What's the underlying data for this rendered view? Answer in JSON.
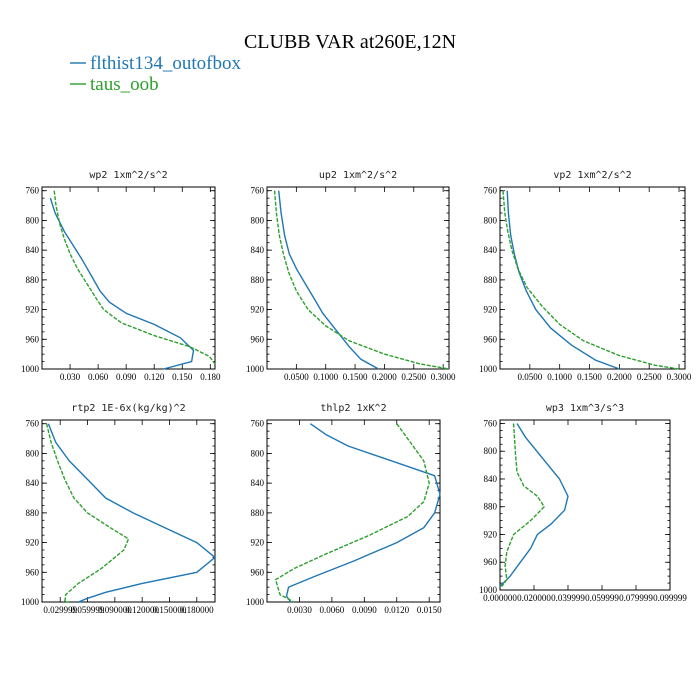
{
  "figure": {
    "title": "CLUBB VAR at260E,12N",
    "legend": [
      {
        "name": "flthist134_outofbox",
        "color": "#1f77b4",
        "dash": "solid"
      },
      {
        "name": "taus_oob",
        "color": "#2ca02c",
        "dash": "dashed"
      }
    ]
  },
  "chart_data": [
    {
      "type": "line",
      "title": "wp2   1xm^2/s^2",
      "xlim": [
        0.0,
        0.185
      ],
      "ylim": [
        1000,
        755
      ],
      "x_ticks": [
        0.03,
        0.06,
        0.09,
        0.12,
        0.15,
        0.18
      ],
      "x_tick_labels": [
        "0.030",
        "0.060",
        "0.090",
        "0.120",
        "0.150",
        "0.180"
      ],
      "y_ticks": [
        760,
        800,
        840,
        880,
        920,
        960,
        1000
      ],
      "y_tick_labels": [
        "760",
        "800",
        "840",
        "880",
        "920",
        "960",
        "1000"
      ],
      "series": [
        {
          "name": "flthist134_outofbox",
          "x": [
            0.009,
            0.014,
            0.024,
            0.034,
            0.044,
            0.053,
            0.062,
            0.072,
            0.09,
            0.12,
            0.148,
            0.162,
            0.16,
            0.13
          ],
          "y": [
            770,
            790,
            815,
            835,
            855,
            875,
            895,
            910,
            925,
            940,
            958,
            975,
            990,
            1000
          ]
        },
        {
          "name": "taus_oob",
          "x": [
            0.013,
            0.015,
            0.019,
            0.024,
            0.03,
            0.038,
            0.048,
            0.058,
            0.066,
            0.085,
            0.12,
            0.158,
            0.179,
            0.185
          ],
          "y": [
            760,
            780,
            805,
            825,
            845,
            865,
            885,
            905,
            920,
            938,
            955,
            970,
            983,
            993
          ]
        }
      ]
    },
    {
      "type": "line",
      "title": "up2   1xm^2/s^2",
      "xlim": [
        0.0,
        0.31
      ],
      "ylim": [
        1000,
        755
      ],
      "x_ticks": [
        0.05,
        0.1,
        0.15,
        0.2,
        0.25,
        0.3
      ],
      "x_tick_labels": [
        "0.0500",
        "0.1000",
        "0.1500",
        "0.2000",
        "0.2500",
        "0.3000"
      ],
      "y_ticks": [
        760,
        800,
        840,
        880,
        920,
        960,
        1000
      ],
      "y_tick_labels": [
        "760",
        "800",
        "840",
        "880",
        "920",
        "960",
        "1000"
      ],
      "series": [
        {
          "name": "flthist134_outofbox",
          "x": [
            0.02,
            0.024,
            0.03,
            0.038,
            0.05,
            0.065,
            0.08,
            0.095,
            0.12,
            0.14,
            0.16,
            0.19
          ],
          "y": [
            760,
            790,
            820,
            845,
            865,
            885,
            905,
            925,
            950,
            970,
            987,
            1000
          ]
        },
        {
          "name": "taus_oob",
          "x": [
            0.013,
            0.016,
            0.021,
            0.028,
            0.037,
            0.05,
            0.07,
            0.1,
            0.14,
            0.2,
            0.26,
            0.31
          ],
          "y": [
            760,
            790,
            820,
            845,
            870,
            895,
            920,
            942,
            962,
            980,
            993,
            1000
          ]
        }
      ]
    },
    {
      "type": "line",
      "title": "vp2   1xm^2/s^2",
      "xlim": [
        0.0,
        0.31
      ],
      "ylim": [
        1000,
        755
      ],
      "x_ticks": [
        0.05,
        0.1,
        0.15,
        0.2,
        0.25,
        0.3
      ],
      "x_tick_labels": [
        "0.0500",
        "0.1000",
        "0.1500",
        "0.2000",
        "0.2500",
        "0.3000"
      ],
      "y_ticks": [
        760,
        800,
        840,
        880,
        920,
        960,
        1000
      ],
      "y_tick_labels": [
        "760",
        "800",
        "840",
        "880",
        "920",
        "960",
        "1000"
      ],
      "series": [
        {
          "name": "flthist134_outofbox",
          "x": [
            0.012,
            0.014,
            0.018,
            0.024,
            0.032,
            0.044,
            0.06,
            0.085,
            0.12,
            0.16,
            0.2
          ],
          "y": [
            760,
            790,
            820,
            845,
            870,
            895,
            920,
            945,
            968,
            988,
            1000
          ]
        },
        {
          "name": "taus_oob",
          "x": [
            0.005,
            0.008,
            0.013,
            0.02,
            0.03,
            0.045,
            0.07,
            0.1,
            0.14,
            0.2,
            0.26,
            0.3
          ],
          "y": [
            760,
            790,
            815,
            840,
            865,
            890,
            915,
            940,
            962,
            982,
            995,
            1000
          ]
        }
      ]
    },
    {
      "type": "line",
      "title": "rtp2   1E-6x(kg/kg)^2",
      "xlim": [
        0.01,
        0.2
      ],
      "ylim": [
        1000,
        755
      ],
      "x_ticks": [
        0.03,
        0.06,
        0.09,
        0.12,
        0.15,
        0.18
      ],
      "x_tick_labels": [
        "0.029999",
        "0.059999",
        "0.090000",
        "0.120000",
        "0.150000",
        "0.180000"
      ],
      "y_ticks": [
        760,
        800,
        840,
        880,
        920,
        960,
        1000
      ],
      "y_tick_labels": [
        "760",
        "800",
        "840",
        "880",
        "920",
        "960",
        "1000"
      ],
      "series": [
        {
          "name": "flthist134_outofbox",
          "x": [
            0.017,
            0.025,
            0.04,
            0.06,
            0.08,
            0.11,
            0.145,
            0.18,
            0.2,
            0.18,
            0.12,
            0.08,
            0.06,
            0.05,
            0.054
          ],
          "y": [
            760,
            785,
            810,
            835,
            860,
            880,
            900,
            920,
            940,
            960,
            975,
            987,
            995,
            1000,
            1000
          ]
        },
        {
          "name": "taus_oob",
          "x": [
            0.015,
            0.02,
            0.027,
            0.035,
            0.045,
            0.06,
            0.085,
            0.105,
            0.1,
            0.075,
            0.05,
            0.036,
            0.035,
            0.04
          ],
          "y": [
            760,
            785,
            810,
            835,
            860,
            880,
            900,
            915,
            930,
            955,
            975,
            990,
            1000,
            1000
          ]
        }
      ]
    },
    {
      "type": "line",
      "title": "thlp2   1xK^2",
      "xlim": [
        0.0,
        0.016
      ],
      "ylim": [
        1000,
        755
      ],
      "x_ticks": [
        0.003,
        0.006,
        0.009,
        0.012,
        0.015
      ],
      "x_tick_labels": [
        "0.0030",
        "0.0060",
        "0.0090",
        "0.0120",
        "0.0150"
      ],
      "y_ticks": [
        760,
        800,
        840,
        880,
        920,
        960,
        1000
      ],
      "y_tick_labels": [
        "760",
        "800",
        "840",
        "880",
        "920",
        "960",
        "1000"
      ],
      "series": [
        {
          "name": "flthist134_outofbox",
          "x": [
            0.004,
            0.0055,
            0.0075,
            0.0155,
            0.016,
            0.0155,
            0.0145,
            0.012,
            0.008,
            0.0045,
            0.002,
            0.0018,
            0.0022
          ],
          "y": [
            760,
            775,
            790,
            830,
            855,
            880,
            900,
            920,
            945,
            965,
            980,
            992,
            1000
          ]
        },
        {
          "name": "taus_oob",
          "x": [
            0.012,
            0.013,
            0.0145,
            0.015,
            0.0145,
            0.013,
            0.0095,
            0.0055,
            0.0025,
            0.0008,
            0.0012,
            0.0025
          ],
          "y": [
            760,
            780,
            810,
            840,
            865,
            885,
            910,
            935,
            955,
            970,
            990,
            1000
          ]
        }
      ]
    },
    {
      "type": "line",
      "title": "wp3   1xm^3/s^3",
      "xlim": [
        0.0,
        0.1
      ],
      "ylim": [
        1000,
        755
      ],
      "x_ticks": [
        0.0,
        0.02,
        0.04,
        0.06,
        0.08,
        0.1
      ],
      "x_tick_labels": [
        "0.000000",
        "0.020000",
        "0.039999",
        "0.059999",
        "0.079999",
        "0.099999"
      ],
      "y_ticks": [
        760,
        800,
        840,
        880,
        920,
        960,
        1000
      ],
      "y_tick_labels": [
        "760",
        "800",
        "840",
        "880",
        "920",
        "960",
        "1000"
      ],
      "series": [
        {
          "name": "flthist134_outofbox",
          "x": [
            0.01,
            0.015,
            0.025,
            0.035,
            0.04,
            0.038,
            0.03,
            0.022,
            0.018,
            0.012,
            0.006,
            0.0
          ],
          "y": [
            760,
            780,
            810,
            840,
            865,
            885,
            905,
            920,
            940,
            960,
            980,
            995
          ]
        },
        {
          "name": "taus_oob",
          "x": [
            0.008,
            0.009,
            0.01,
            0.014,
            0.022,
            0.026,
            0.018,
            0.008,
            0.004,
            0.003,
            0.004,
            0.001
          ],
          "y": [
            760,
            800,
            830,
            850,
            865,
            880,
            900,
            920,
            945,
            965,
            985,
            995
          ]
        }
      ]
    }
  ]
}
